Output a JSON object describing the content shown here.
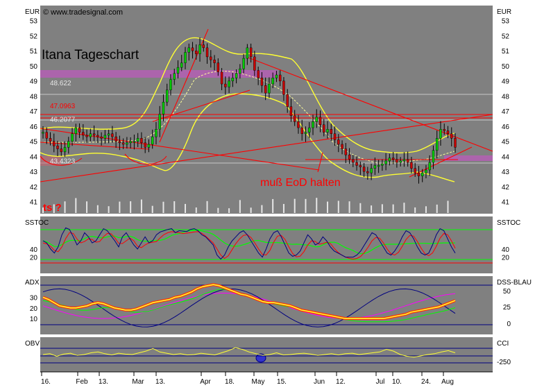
{
  "watermark": "© www.tradesignal.com",
  "chart_title": "Itana Tageschart",
  "annotation": "muß EoD halten",
  "annotation_ts": "ts ?",
  "colors": {
    "panel_bg": "#808080",
    "band": "#ffff33",
    "price_line": "#ffff99",
    "red": "#ff0000",
    "purple": "#a040a0",
    "grey_line": "#c0c0c0",
    "green": "#00ff00",
    "blue": "#000080",
    "magenta": "#ff00ff"
  },
  "chart_data": [
    {
      "type": "line",
      "panel": "price",
      "left_label": "EUR",
      "right_label": "EUR",
      "y_ticks": [
        53,
        52,
        51,
        50,
        49,
        48,
        47,
        46,
        45,
        44,
        43,
        42,
        41
      ],
      "ylim": [
        40.2,
        54.0
      ],
      "level_labels": [
        "48.622",
        "47.0963",
        "46.2077",
        "43.4323"
      ],
      "levels": [
        48.622,
        47.0963,
        46.2077,
        43.4323
      ],
      "series": [
        {
          "values": [
            45.6,
            45.2,
            45.0,
            44.7,
            44.5,
            44.3,
            44.6,
            45.0,
            45.5,
            45.9,
            45.6,
            45.4,
            45.3,
            45.5,
            45.4,
            45.3,
            45.2,
            45.4,
            45.5,
            45.3,
            45.0,
            44.9,
            44.8,
            44.9,
            45.0,
            45.0,
            45.2,
            44.9,
            44.6,
            44.8,
            45.3,
            45.8,
            46.8,
            47.6,
            48.4,
            49.1,
            49.5,
            49.9,
            50.2,
            50.9,
            51.2,
            51.0,
            50.8,
            51.4,
            51.2,
            50.6,
            50.4,
            50.2,
            49.6,
            48.8,
            48.6,
            49.0,
            49.2,
            49.5,
            49.8,
            50.5,
            51.2,
            50.6,
            49.7,
            49.2,
            48.7,
            48.2,
            48.8,
            49.2,
            49.4,
            49.0,
            48.1,
            47.3,
            46.7,
            46.3,
            45.9,
            45.5,
            45.6,
            45.9,
            46.3,
            46.6,
            46.1,
            45.6,
            45.8,
            45.5,
            45.1,
            44.8,
            44.5,
            44.1,
            43.8,
            43.6,
            43.4,
            43.3,
            43.0,
            42.9,
            43.2,
            43.4,
            43.4,
            43.5,
            43.7,
            43.9,
            43.8,
            43.6,
            43.7,
            43.8,
            43.6,
            43.2,
            42.9,
            42.7,
            42.9,
            43.1,
            43.6,
            44.4,
            45.2,
            45.8,
            45.7,
            45.5,
            45.2,
            44.6
          ]
        }
      ]
    },
    {
      "type": "line",
      "panel": "SSTOC",
      "left_label": "SSTOC",
      "right_label": "SSTOC",
      "y_ticks": [
        40,
        20
      ],
      "ylim": [
        -20,
        120
      ],
      "series": [
        {
          "name": "SSTOC",
          "values": [
            60,
            55,
            40,
            30,
            45,
            75,
            92,
            88,
            70,
            50,
            60,
            80,
            70,
            55,
            60,
            75,
            90,
            85,
            72,
            60,
            45,
            70,
            80,
            65,
            50,
            40,
            55,
            70,
            55,
            60,
            75,
            82,
            85,
            88,
            90,
            80,
            85,
            84,
            83,
            88,
            90,
            85,
            75,
            70,
            60,
            50,
            25,
            15,
            25,
            45,
            60,
            70,
            80,
            85,
            75,
            60,
            45,
            30,
            20,
            40,
            65,
            80,
            85,
            70,
            50,
            30,
            22,
            25,
            35,
            55,
            75,
            65,
            50,
            55,
            70,
            60,
            45,
            35,
            30,
            25,
            20,
            20,
            20,
            25,
            35,
            50,
            65,
            80,
            75,
            60,
            45,
            30,
            25,
            35,
            50,
            70,
            85,
            80,
            65,
            45,
            30,
            25,
            30,
            50,
            75,
            90,
            85,
            65,
            45,
            30
          ]
        }
      ]
    },
    {
      "type": "line",
      "panel": "ADX",
      "left_label": "ADX",
      "right_label": "DSS-BLAU",
      "y_ticks": [
        30,
        20,
        10
      ],
      "y_ticks_right": [
        50,
        25,
        0
      ],
      "ylim": [
        -5,
        50
      ],
      "series": [
        {
          "name": "ADX",
          "values": [
            30,
            28,
            25,
            22,
            21,
            20,
            20,
            21,
            22,
            24,
            25,
            24,
            22,
            20,
            19,
            18,
            18,
            19,
            21,
            23,
            25,
            26,
            27,
            28,
            30,
            31,
            33,
            35,
            38,
            40,
            41,
            42,
            41,
            39,
            37,
            35,
            33,
            32,
            30,
            28,
            26,
            25,
            25,
            24,
            23,
            22,
            20,
            18,
            17,
            16,
            15,
            14,
            13,
            12,
            11,
            10,
            10,
            10,
            10,
            10,
            10,
            10,
            10,
            11,
            12,
            13,
            14,
            16,
            17,
            18,
            19,
            20,
            21,
            23,
            25,
            27
          ]
        }
      ]
    },
    {
      "type": "line",
      "panel": "OBV",
      "left_label": "OBV",
      "right_label": "CCI",
      "y_ticks_right": [
        -250
      ],
      "ylim": [
        -400,
        400
      ],
      "series": [
        {
          "name": "OBV",
          "values": [
            0,
            20,
            -40,
            10,
            30,
            -20,
            0,
            40,
            60,
            20,
            -10,
            30,
            10,
            0,
            40,
            80,
            140,
            60,
            30,
            0,
            20,
            -10,
            0,
            30,
            10,
            -10,
            40,
            90,
            160,
            120,
            60,
            20,
            -20,
            0,
            40,
            -10,
            0,
            20,
            30,
            10,
            -20,
            0,
            20,
            -10,
            20,
            30,
            0,
            20,
            40,
            60,
            120,
            80,
            0,
            -40,
            -60,
            -30,
            0,
            20,
            60,
            90,
            40
          ]
        }
      ]
    }
  ],
  "x_axis": {
    "labels": [
      "16.",
      "Feb",
      "13.",
      "Mar",
      "13.",
      "Apr",
      "18.",
      "May",
      "15.",
      "Jun",
      "12.",
      "Jul",
      "10.",
      "24.",
      "Aug"
    ]
  }
}
